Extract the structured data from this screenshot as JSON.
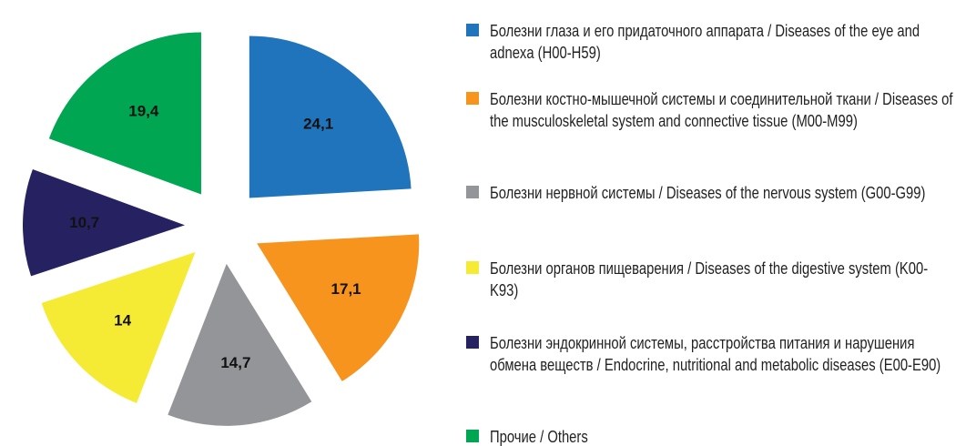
{
  "chart_data": {
    "type": "pie",
    "categories": [
      "Болезни глаза и его придаточного аппарата / Diseases of the eye and adnexa (H00-H59)",
      "Болезни костно-мышечной системы и соединительной ткани / Diseases of the musculoskeletal system and connective tissue (M00-M99)",
      "Болезни нервной системы / Diseases of the nervous system (G00-G99)",
      "Болезни органов пищеварения / Diseases of the digestive system (K00-K93)",
      "Болезни эндокринной системы, расстройства питания и нарушения обмена веществ / Endocrine, nutritional and metabolic diseases (E00-E90)",
      "Прочие / Others"
    ],
    "values": [
      24.1,
      17.1,
      14.7,
      14,
      10.7,
      19.4
    ],
    "value_labels": [
      "24,1",
      "17,1",
      "14,7",
      "14",
      "10,7",
      "19,4"
    ],
    "colors": [
      "#1f74bb",
      "#f7941d",
      "#939598",
      "#f6eb34",
      "#262262",
      "#00a651"
    ],
    "legend": "right"
  }
}
